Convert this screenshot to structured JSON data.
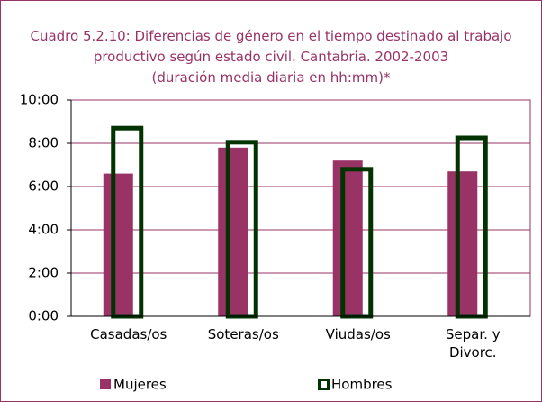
{
  "chart_data": {
    "type": "bar",
    "title": "Cuadro 5.2.10: Diferencias de género en el tiempo destinado al trabajo productivo según estado civil. Cantabria. 2002-2003",
    "subtitle": "(duración media diaria en hh:mm)*",
    "categories": [
      "Casadas/os",
      "Soteras/os",
      "Viudas/os",
      "Separ. y Divorc."
    ],
    "series": [
      {
        "name": "Mujeres",
        "color": "#993366",
        "values": [
          6.6,
          7.8,
          7.2,
          6.7
        ]
      },
      {
        "name": "Hombres",
        "color": "#003300",
        "values": [
          8.7,
          8.05,
          6.8,
          8.25
        ]
      }
    ],
    "ylim": [
      0,
      10
    ],
    "yticks": [
      {
        "value": 0,
        "label": "0:00"
      },
      {
        "value": 2,
        "label": "2:00"
      },
      {
        "value": 4,
        "label": "4:00"
      },
      {
        "value": 6,
        "label": "6:00"
      },
      {
        "value": 8,
        "label": "8:00"
      },
      {
        "value": 10,
        "label": "10:00"
      }
    ],
    "grid": true,
    "legend": "bottom"
  }
}
